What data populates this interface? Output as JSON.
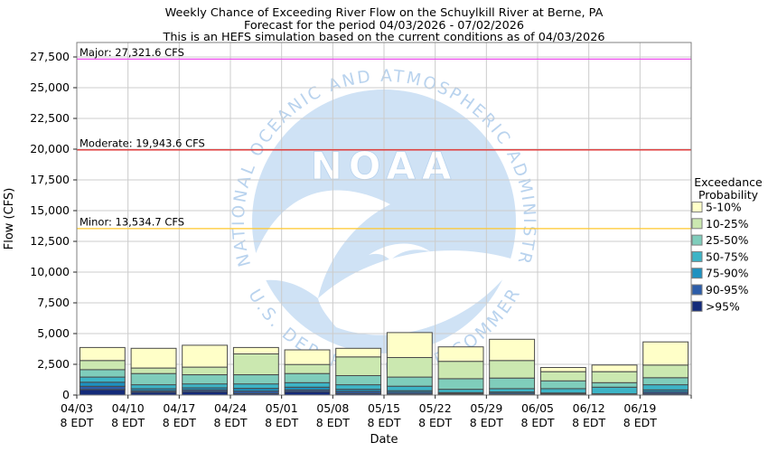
{
  "title": {
    "line1": "Weekly Chance of Exceeding River Flow on the Schuylkill River at Berne, PA",
    "line2": "Forecast for the period 04/03/2026 - 07/02/2026",
    "line3": "This is an HEFS simulation based on the current conditions as of 04/03/2026"
  },
  "y_axis": {
    "label": "Flow (CFS)",
    "tick_interval": 2500,
    "tick_labels": [
      "0",
      "2,500",
      "5,000",
      "7,500",
      "10,000",
      "12,500",
      "15,000",
      "17,500",
      "20,000",
      "22,500",
      "25,000",
      "27,500"
    ]
  },
  "x_axis": {
    "label": "Date",
    "tick_sub_label": "8 EDT"
  },
  "thresholds": [
    {
      "name": "Major",
      "label": "Major: 27,321.6 CFS",
      "value": 27321.6,
      "color": "#ed4ded"
    },
    {
      "name": "Moderate",
      "label": "Moderate: 19,943.6 CFS",
      "value": 19943.6,
      "color": "#e03030"
    },
    {
      "name": "Minor",
      "label": "Minor: 13,534.7 CFS",
      "value": 13534.7,
      "color": "#ffc72c"
    }
  ],
  "legend": {
    "title_line1": "Exceedance",
    "title_line2": "Probability",
    "entries": [
      {
        "label": "5-10%",
        "color": "#ffffc8"
      },
      {
        "label": "10-25%",
        "color": "#cbe8b0"
      },
      {
        "label": "25-50%",
        "color": "#7fcdbb"
      },
      {
        "label": "50-75%",
        "color": "#3db4c6"
      },
      {
        "label": "75-90%",
        "color": "#1d91c0"
      },
      {
        "label": "90-95%",
        "color": "#2c5da9"
      },
      {
        "label": ">95%",
        "color": "#142b7a"
      }
    ]
  },
  "watermark": {
    "acronym": "NOAA",
    "arc_top": "NATIONAL OCEANIC AND ATMOSPHERIC ADMINISTRATION",
    "arc_bottom": "U.S. DEPARTMENT OF COMMERCE",
    "circle_color": "#cfe2f5",
    "text_color": "#b9d3ee"
  },
  "chart_data": {
    "type": "bar",
    "stacked": true,
    "grid": true,
    "legend_position": "right",
    "xlabel": "Date",
    "ylabel": "Flow (CFS)",
    "ylim": [
      0,
      28676
    ],
    "categories": [
      "04/03",
      "04/10",
      "04/17",
      "04/24",
      "05/01",
      "05/08",
      "05/15",
      "05/22",
      "05/29",
      "06/05",
      "06/12",
      "06/19"
    ],
    "x_sub_label": "8 EDT",
    "bar_totals_cfs": [
      3870,
      3800,
      4050,
      3870,
      3680,
      3800,
      5080,
      3920,
      4540,
      2240,
      2440,
      4320
    ],
    "series": [
      {
        "name": ">95%",
        "color": "#142b7a",
        "values": [
          450,
          230,
          280,
          120,
          280,
          120,
          90,
          60,
          50,
          50,
          40,
          100
        ]
      },
      {
        "name": "90-95%",
        "color": "#2c5da9",
        "values": [
          270,
          120,
          140,
          200,
          140,
          180,
          130,
          70,
          100,
          60,
          30,
          150
        ]
      },
      {
        "name": "75-90%",
        "color": "#1d91c0",
        "values": [
          320,
          170,
          170,
          220,
          220,
          170,
          130,
          70,
          100,
          60,
          30,
          170
        ]
      },
      {
        "name": "50-75%",
        "color": "#3db4c6",
        "values": [
          420,
          320,
          320,
          370,
          370,
          370,
          370,
          270,
          270,
          350,
          540,
          420
        ]
      },
      {
        "name": "25-50%",
        "color": "#7fcdbb",
        "values": [
          610,
          910,
          740,
          740,
          740,
          740,
          740,
          860,
          860,
          640,
          370,
          570
        ]
      },
      {
        "name": "10-25%",
        "color": "#cbe8b0",
        "values": [
          740,
          450,
          620,
          1700,
          740,
          1520,
          1590,
          1410,
          1430,
          740,
          890,
          1030
        ]
      },
      {
        "name": "5-10%",
        "color": "#ffffc8",
        "values": [
          1060,
          1600,
          1780,
          520,
          1190,
          700,
          2030,
          1180,
          1730,
          340,
          540,
          1880
        ]
      }
    ]
  }
}
